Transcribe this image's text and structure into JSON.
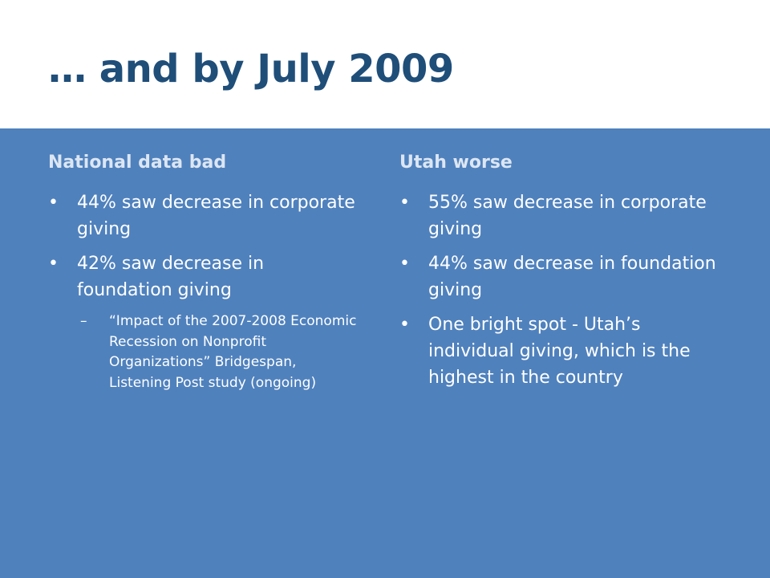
{
  "slide": {
    "title": "… and by July 2009"
  },
  "left_column": {
    "heading": "National  data bad",
    "bullets": [
      "44% saw decrease in corporate giving",
      "42% saw decrease in foundation giving"
    ],
    "subnote": "“Impact of the 2007-2008 Economic Recession on Nonprofit Organizations” Bridgespan, Listening Post study (ongoing)"
  },
  "right_column": {
    "heading": "Utah worse",
    "bullets": [
      "55% saw decrease in corporate giving",
      "44% saw decrease in foundation giving",
      "One bright spot  - Utah’s individual giving, which is the highest in the country"
    ]
  },
  "symbols": {
    "bullet": "•",
    "dash": "–"
  },
  "colors": {
    "title": "#1f4e79",
    "background_band": "#4f81bd",
    "heading": "#dce6f2",
    "text": "#ffffff"
  }
}
